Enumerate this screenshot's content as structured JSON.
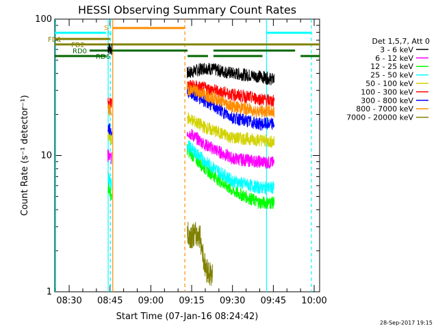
{
  "chart_data": {
    "type": "line",
    "title": "HESSI Observing Summary Count Rates",
    "xlabel": "Start Time (07-Jan-16 08:24:42)",
    "ylabel": "Count Rate (s⁻¹ detector⁻¹)",
    "y_scale": "log",
    "ylim": [
      1,
      100
    ],
    "xlim": [
      "08:24:42",
      "10:02:00"
    ],
    "x_ticks": [
      "08:30",
      "08:45",
      "09:00",
      "09:15",
      "09:30",
      "09:45",
      "10:00"
    ],
    "y_ticks": [
      "1",
      "10",
      "100"
    ],
    "legend_title": "Det 1,5,7, Att 0",
    "legend_position": "right",
    "colors": {
      "3-6": "#000000",
      "6-12": "#ff00ff",
      "12-25": "#00ff00",
      "25-50": "#00ffff",
      "50-100": "#d2d200",
      "100-300": "#ff0000",
      "300-800": "#0000ff",
      "800-7000": "#ff8c00",
      "7000-20000": "#808000"
    },
    "series": [
      {
        "name": "3 - 6 keV",
        "color": "#000000",
        "segments": [
          {
            "t": [
              "08:44:10",
              "08:45:40"
            ],
            "values": [
              62,
              60
            ]
          },
          {
            "t": [
              "09:13:20",
              "09:20:00",
              "09:30:00",
              "09:40:00",
              "09:45:20"
            ],
            "values": [
              40,
              44,
              40,
              38,
              36
            ]
          }
        ]
      },
      {
        "name": "6 - 12 keV",
        "color": "#ff00ff",
        "segments": [
          {
            "t": [
              "08:44:10",
              "08:45:40"
            ],
            "values": [
              10,
              9.5
            ]
          },
          {
            "t": [
              "09:13:20",
              "09:20:00",
              "09:30:00",
              "09:40:00",
              "09:45:20"
            ],
            "values": [
              15,
              12,
              9.5,
              9,
              8.8
            ]
          }
        ]
      },
      {
        "name": "12 - 25 keV",
        "color": "#00ff00",
        "segments": [
          {
            "t": [
              "08:44:10",
              "08:45:40"
            ],
            "values": [
              6,
              5
            ]
          },
          {
            "t": [
              "09:13:20",
              "09:20:00",
              "09:30:00",
              "09:40:00",
              "09:45:20"
            ],
            "values": [
              11,
              8,
              5.5,
              4.5,
              4.5
            ]
          }
        ]
      },
      {
        "name": "25 - 50 keV",
        "color": "#00ffff",
        "segments": [
          {
            "t": [
              "08:44:10",
              "08:45:40"
            ],
            "values": [
              7,
              6
            ]
          },
          {
            "t": [
              "09:13:20",
              "09:20:00",
              "09:30:00",
              "09:40:00",
              "09:45:20"
            ],
            "values": [
              12,
              9,
              6.5,
              5.8,
              5.8
            ]
          }
        ]
      },
      {
        "name": "50 - 100 keV",
        "color": "#d2d200",
        "segments": [
          {
            "t": [
              "08:44:10",
              "08:45:40"
            ],
            "values": [
              14,
              13
            ]
          },
          {
            "t": [
              "09:13:20",
              "09:20:00",
              "09:30:00",
              "09:40:00",
              "09:45:20"
            ],
            "values": [
              19,
              16,
              13.5,
              13,
              12.5
            ]
          }
        ]
      },
      {
        "name": "100 - 300 keV",
        "color": "#ff0000",
        "segments": [
          {
            "t": [
              "08:44:10",
              "08:45:40"
            ],
            "values": [
              25,
              24
            ]
          },
          {
            "t": [
              "09:13:20",
              "09:20:00",
              "09:30:00",
              "09:40:00",
              "09:45:20"
            ],
            "values": [
              33,
              31,
              28,
              26,
              25
            ]
          }
        ]
      },
      {
        "name": "300 - 800 keV",
        "color": "#0000ff",
        "segments": [
          {
            "t": [
              "08:44:10",
              "08:45:40"
            ],
            "values": [
              16,
              15
            ]
          },
          {
            "t": [
              "09:13:20",
              "09:20:00",
              "09:30:00",
              "09:40:00",
              "09:45:20"
            ],
            "values": [
              30,
              25,
              19,
              17,
              17
            ]
          }
        ]
      },
      {
        "name": "800 - 7000 keV",
        "color": "#ff8c00",
        "segments": [
          {
            "t": [
              "08:44:10",
              "08:45:40"
            ],
            "values": [
              22,
              21
            ]
          },
          {
            "t": [
              "09:13:20",
              "09:20:00",
              "09:30:00",
              "09:40:00",
              "09:45:20"
            ],
            "values": [
              31,
              28,
              23,
              21,
              21
            ]
          }
        ]
      },
      {
        "name": "7000 - 20000 keV",
        "color": "#808000",
        "segments": [
          {
            "t": [
              "09:13:20",
              "09:18:00",
              "09:20:00",
              "09:22:40"
            ],
            "values": [
              2.6,
              2.6,
              1.5,
              1.3
            ]
          }
        ]
      }
    ],
    "flags": [
      {
        "name": "FD1",
        "color": "#808000",
        "intervals": [
          [
            "08:24:42",
            "08:45:00"
          ]
        ]
      },
      {
        "name": "FD2",
        "color": "#808000",
        "intervals": [
          [
            "08:24:42",
            "10:02:00"
          ]
        ]
      },
      {
        "name": "RD0",
        "color": "#006400",
        "intervals": [
          [
            "08:37:30",
            "09:13:30"
          ],
          [
            "09:23:00",
            "09:53:00"
          ]
        ]
      },
      {
        "name": "RD6",
        "color": "#006400",
        "intervals": [
          [
            "08:24:42",
            "08:43:30"
          ],
          [
            "09:13:30",
            "09:21:00"
          ],
          [
            "09:23:00",
            "09:41:00"
          ],
          [
            "09:55:00",
            "10:02:00"
          ]
        ]
      },
      {
        "name": "S",
        "color": "#ff8c00",
        "intervals": [
          [
            "08:46:00",
            "09:12:30"
          ]
        ]
      },
      {
        "name": "N",
        "color": "#00ffff",
        "intervals": [
          [
            "08:24:42",
            "08:43:30"
          ],
          [
            "09:42:30",
            "09:59:00"
          ]
        ]
      }
    ],
    "vertical_lines": [
      {
        "t": "08:25:00",
        "color": "#00ffff",
        "style": "solid"
      },
      {
        "t": "08:44:20",
        "color": "#00ffff",
        "style": "solid"
      },
      {
        "t": "08:45:10",
        "color": "#00ffff",
        "style": "dashed"
      },
      {
        "t": "08:46:00",
        "color": "#ff8c00",
        "style": "solid"
      },
      {
        "t": "09:12:30",
        "color": "#ff8c00",
        "style": "dashed"
      },
      {
        "t": "09:42:30",
        "color": "#00ffff",
        "style": "solid"
      },
      {
        "t": "09:59:00",
        "color": "#00ffff",
        "style": "dashed"
      }
    ]
  },
  "footer": {
    "timestamp": "28-Sep-2017 19:15"
  }
}
